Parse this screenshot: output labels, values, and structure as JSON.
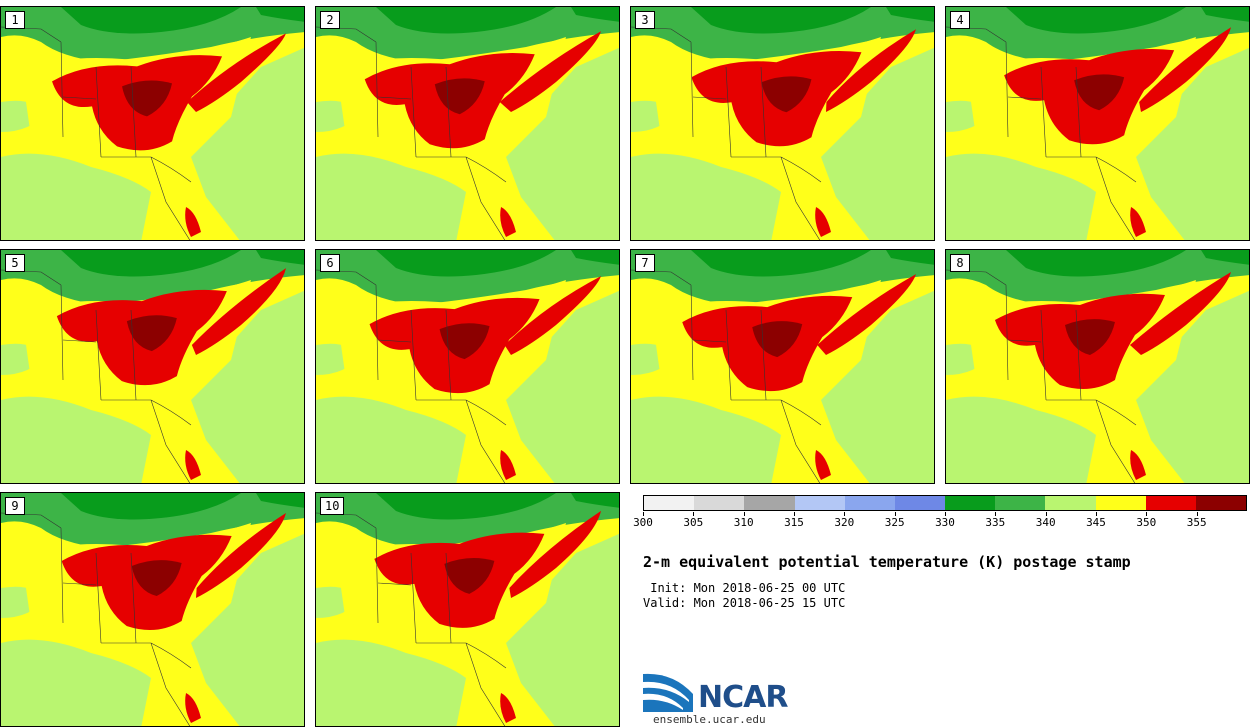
{
  "panels": [
    {
      "label": "1"
    },
    {
      "label": "2"
    },
    {
      "label": "3"
    },
    {
      "label": "4"
    },
    {
      "label": "5"
    },
    {
      "label": "6"
    },
    {
      "label": "7"
    },
    {
      "label": "8"
    },
    {
      "label": "9"
    },
    {
      "label": "10"
    }
  ],
  "colorbar": {
    "colors": [
      "#f2f2f2",
      "#d9d9d9",
      "#a6a6a6",
      "#b3c7f5",
      "#8aa6ee",
      "#6e88e6",
      "#089c1c",
      "#3db447",
      "#b9f570",
      "#ffff1a",
      "#e60000",
      "#8c0000"
    ],
    "ticks": [
      "300",
      "305",
      "310",
      "315",
      "320",
      "325",
      "330",
      "335",
      "340",
      "345",
      "350",
      "355"
    ]
  },
  "title": "2-m equivalent potential temperature (K) postage stamp",
  "init": " Init: Mon 2018-06-25 00 UTC",
  "valid": "Valid: Mon 2018-06-25 15 UTC",
  "logo": {
    "name": "NCAR",
    "url": "ensemble.ucar.edu"
  }
}
